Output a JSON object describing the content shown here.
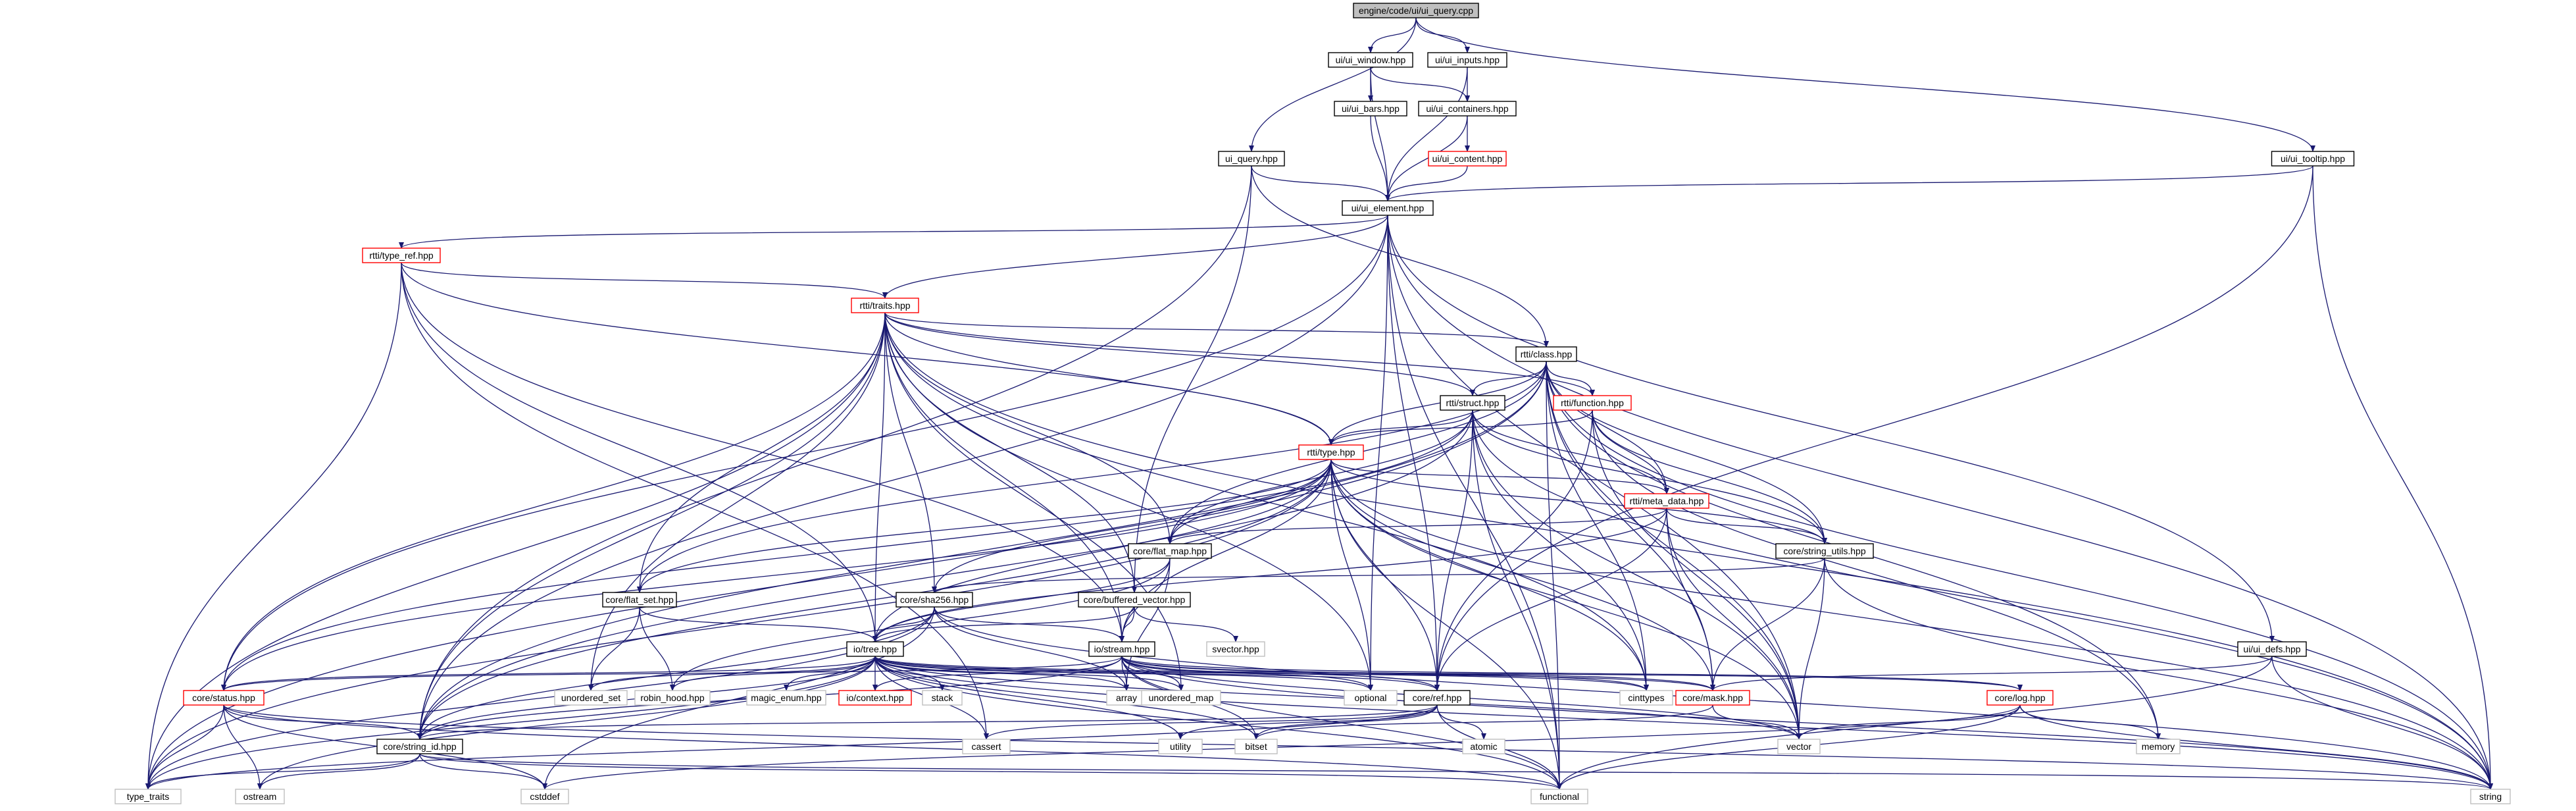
{
  "graph": {
    "root": "engine/code/ui/ui_query.cpp",
    "colors": {
      "edge": "#191970",
      "node_border": "#000000",
      "node_border_incomplete": "#ff0000",
      "node_border_system": "#bfbfbf",
      "root_fill": "#bfbfbf",
      "node_fill": "#ffffff",
      "text": "#000000"
    },
    "nodes": [
      {
        "id": "root",
        "label": "engine/code/ui/ui_query.cpp",
        "kind": "root"
      },
      {
        "id": "ui_window",
        "label": "ui/ui_window.hpp",
        "kind": "normal"
      },
      {
        "id": "ui_inputs",
        "label": "ui/ui_inputs.hpp",
        "kind": "normal"
      },
      {
        "id": "ui_bars",
        "label": "ui/ui_bars.hpp",
        "kind": "normal"
      },
      {
        "id": "ui_containers",
        "label": "ui/ui_containers.hpp",
        "kind": "normal"
      },
      {
        "id": "ui_content",
        "label": "ui/ui_content.hpp",
        "kind": "incomplete"
      },
      {
        "id": "ui_query_hpp",
        "label": "ui_query.hpp",
        "kind": "normal"
      },
      {
        "id": "ui_tooltip",
        "label": "ui/ui_tooltip.hpp",
        "kind": "normal"
      },
      {
        "id": "ui_element",
        "label": "ui/ui_element.hpp",
        "kind": "normal"
      },
      {
        "id": "type_ref",
        "label": "rtti/type_ref.hpp",
        "kind": "incomplete"
      },
      {
        "id": "traits",
        "label": "rtti/traits.hpp",
        "kind": "incomplete"
      },
      {
        "id": "class",
        "label": "rtti/class.hpp",
        "kind": "normal"
      },
      {
        "id": "struct",
        "label": "rtti/struct.hpp",
        "kind": "normal"
      },
      {
        "id": "function",
        "label": "rtti/function.hpp",
        "kind": "incomplete"
      },
      {
        "id": "type",
        "label": "rtti/type.hpp",
        "kind": "incomplete"
      },
      {
        "id": "meta_data",
        "label": "rtti/meta_data.hpp",
        "kind": "incomplete"
      },
      {
        "id": "flat_map",
        "label": "core/flat_map.hpp",
        "kind": "normal"
      },
      {
        "id": "string_utils",
        "label": "core/string_utils.hpp",
        "kind": "normal"
      },
      {
        "id": "sha256",
        "label": "core/sha256.hpp",
        "kind": "normal"
      },
      {
        "id": "flat_set",
        "label": "core/flat_set.hpp",
        "kind": "normal"
      },
      {
        "id": "buffered_vector",
        "label": "core/buffered_vector.hpp",
        "kind": "normal"
      },
      {
        "id": "svector",
        "label": "svector.hpp",
        "kind": "system"
      },
      {
        "id": "tree",
        "label": "io/tree.hpp",
        "kind": "normal"
      },
      {
        "id": "stream",
        "label": "io/stream.hpp",
        "kind": "normal"
      },
      {
        "id": "ui_defs",
        "label": "ui/ui_defs.hpp",
        "kind": "normal"
      },
      {
        "id": "status",
        "label": "core/status.hpp",
        "kind": "incomplete"
      },
      {
        "id": "unordered_set",
        "label": "unordered_set",
        "kind": "system"
      },
      {
        "id": "robin_hood",
        "label": "robin_hood.hpp",
        "kind": "system"
      },
      {
        "id": "magic_enum",
        "label": "magic_enum.hpp",
        "kind": "system"
      },
      {
        "id": "io_context",
        "label": "io/context.hpp",
        "kind": "incomplete"
      },
      {
        "id": "stack",
        "label": "stack",
        "kind": "system"
      },
      {
        "id": "array",
        "label": "array",
        "kind": "system"
      },
      {
        "id": "unordered_map",
        "label": "unordered_map",
        "kind": "system"
      },
      {
        "id": "optional",
        "label": "optional",
        "kind": "system"
      },
      {
        "id": "ref",
        "label": "core/ref.hpp",
        "kind": "normal"
      },
      {
        "id": "cinttypes",
        "label": "cinttypes",
        "kind": "system"
      },
      {
        "id": "mask",
        "label": "core/mask.hpp",
        "kind": "incomplete"
      },
      {
        "id": "log",
        "label": "core/log.hpp",
        "kind": "incomplete"
      },
      {
        "id": "string_id",
        "label": "core/string_id.hpp",
        "kind": "normal"
      },
      {
        "id": "cassert",
        "label": "cassert",
        "kind": "system"
      },
      {
        "id": "utility",
        "label": "utility",
        "kind": "system"
      },
      {
        "id": "bitset",
        "label": "bitset",
        "kind": "system"
      },
      {
        "id": "atomic",
        "label": "atomic",
        "kind": "system"
      },
      {
        "id": "vector",
        "label": "vector",
        "kind": "system"
      },
      {
        "id": "memory",
        "label": "memory",
        "kind": "system"
      },
      {
        "id": "type_traits",
        "label": "type_traits",
        "kind": "system"
      },
      {
        "id": "ostream",
        "label": "ostream",
        "kind": "system"
      },
      {
        "id": "cstddef",
        "label": "cstddef",
        "kind": "system"
      },
      {
        "id": "functional",
        "label": "functional",
        "kind": "system"
      },
      {
        "id": "string",
        "label": "string",
        "kind": "system"
      }
    ],
    "edges": [
      [
        "root",
        "ui_window"
      ],
      [
        "root",
        "ui_inputs"
      ],
      [
        "root",
        "ui_query_hpp"
      ],
      [
        "root",
        "ui_tooltip"
      ],
      [
        "ui_window",
        "ui_bars"
      ],
      [
        "ui_window",
        "ui_containers"
      ],
      [
        "ui_window",
        "ui_element"
      ],
      [
        "ui_inputs",
        "ui_containers"
      ],
      [
        "ui_inputs",
        "ui_element"
      ],
      [
        "ui_bars",
        "ui_element"
      ],
      [
        "ui_containers",
        "ui_content"
      ],
      [
        "ui_containers",
        "ui_element"
      ],
      [
        "ui_content",
        "ui_element"
      ],
      [
        "ui_query_hpp",
        "ui_element"
      ],
      [
        "ui_query_hpp",
        "class"
      ],
      [
        "ui_query_hpp",
        "buffered_vector"
      ],
      [
        "ui_query_hpp",
        "string_id"
      ],
      [
        "ui_tooltip",
        "ui_element"
      ],
      [
        "ui_tooltip",
        "ref"
      ],
      [
        "ui_tooltip",
        "string"
      ],
      [
        "ui_element",
        "type_ref"
      ],
      [
        "ui_element",
        "traits"
      ],
      [
        "ui_element",
        "status"
      ],
      [
        "ui_element",
        "string_id"
      ],
      [
        "ui_element",
        "optional"
      ],
      [
        "ui_element",
        "ref"
      ],
      [
        "ui_element",
        "ui_defs"
      ],
      [
        "ui_element",
        "vector"
      ],
      [
        "ui_element",
        "functional"
      ],
      [
        "ui_element",
        "string"
      ],
      [
        "type_ref",
        "traits"
      ],
      [
        "type_ref",
        "type"
      ],
      [
        "type_ref",
        "tree"
      ],
      [
        "type_ref",
        "stream"
      ],
      [
        "type_ref",
        "type_traits"
      ],
      [
        "type_ref",
        "cassert"
      ],
      [
        "traits",
        "class"
      ],
      [
        "traits",
        "struct"
      ],
      [
        "traits",
        "function"
      ],
      [
        "traits",
        "type"
      ],
      [
        "traits",
        "flat_map"
      ],
      [
        "traits",
        "sha256"
      ],
      [
        "traits",
        "flat_set"
      ],
      [
        "traits",
        "buffered_vector"
      ],
      [
        "traits",
        "tree"
      ],
      [
        "traits",
        "stream"
      ],
      [
        "traits",
        "status"
      ],
      [
        "traits",
        "unordered_set"
      ],
      [
        "traits",
        "unordered_map"
      ],
      [
        "traits",
        "optional"
      ],
      [
        "traits",
        "cinttypes"
      ],
      [
        "traits",
        "string_id"
      ],
      [
        "traits",
        "type_traits"
      ],
      [
        "traits",
        "string"
      ],
      [
        "class",
        "struct"
      ],
      [
        "class",
        "function"
      ],
      [
        "class",
        "type"
      ],
      [
        "class",
        "meta_data"
      ],
      [
        "class",
        "flat_map"
      ],
      [
        "class",
        "string_utils"
      ],
      [
        "class",
        "flat_set"
      ],
      [
        "class",
        "mask"
      ],
      [
        "class",
        "vector"
      ],
      [
        "class",
        "memory"
      ],
      [
        "class",
        "functional"
      ],
      [
        "class",
        "string"
      ],
      [
        "class",
        "cinttypes"
      ],
      [
        "class",
        "string_id"
      ],
      [
        "class",
        "type_traits"
      ],
      [
        "struct",
        "type"
      ],
      [
        "struct",
        "meta_data"
      ],
      [
        "struct",
        "flat_map"
      ],
      [
        "struct",
        "string_utils"
      ],
      [
        "struct",
        "ref"
      ],
      [
        "struct",
        "cinttypes"
      ],
      [
        "struct",
        "vector"
      ],
      [
        "struct",
        "functional"
      ],
      [
        "struct",
        "string"
      ],
      [
        "struct",
        "string_id"
      ],
      [
        "struct",
        "status"
      ],
      [
        "function",
        "type"
      ],
      [
        "function",
        "meta_data"
      ],
      [
        "function",
        "string_utils"
      ],
      [
        "function",
        "ref"
      ],
      [
        "function",
        "vector"
      ],
      [
        "function",
        "memory"
      ],
      [
        "type",
        "meta_data"
      ],
      [
        "type",
        "flat_map"
      ],
      [
        "type",
        "string_utils"
      ],
      [
        "type",
        "sha256"
      ],
      [
        "type",
        "flat_set"
      ],
      [
        "type",
        "tree"
      ],
      [
        "type",
        "stream"
      ],
      [
        "type",
        "optional"
      ],
      [
        "type",
        "ref"
      ],
      [
        "type",
        "cinttypes"
      ],
      [
        "type",
        "mask"
      ],
      [
        "type",
        "string_id"
      ],
      [
        "type",
        "status"
      ],
      [
        "type",
        "type_traits"
      ],
      [
        "type",
        "vector"
      ],
      [
        "type",
        "functional"
      ],
      [
        "type",
        "string"
      ],
      [
        "meta_data",
        "flat_map"
      ],
      [
        "meta_data",
        "string_utils"
      ],
      [
        "meta_data",
        "ref"
      ],
      [
        "meta_data",
        "mask"
      ],
      [
        "meta_data",
        "vector"
      ],
      [
        "meta_data",
        "tree"
      ],
      [
        "flat_map",
        "tree"
      ],
      [
        "flat_map",
        "stream"
      ],
      [
        "flat_map",
        "robin_hood"
      ],
      [
        "flat_map",
        "array"
      ],
      [
        "string_utils",
        "sha256"
      ],
      [
        "string_utils",
        "vector"
      ],
      [
        "string_utils",
        "string"
      ],
      [
        "string_utils",
        "mask"
      ],
      [
        "sha256",
        "tree"
      ],
      [
        "sha256",
        "stream"
      ],
      [
        "sha256",
        "string_id"
      ],
      [
        "sha256",
        "type_traits"
      ],
      [
        "sha256",
        "cstddef"
      ],
      [
        "sha256",
        "array"
      ],
      [
        "sha256",
        "string"
      ],
      [
        "flat_set",
        "tree"
      ],
      [
        "flat_set",
        "robin_hood"
      ],
      [
        "flat_set",
        "unordered_set"
      ],
      [
        "buffered_vector",
        "tree"
      ],
      [
        "buffered_vector",
        "stream"
      ],
      [
        "buffered_vector",
        "svector"
      ],
      [
        "tree",
        "status"
      ],
      [
        "tree",
        "unordered_set"
      ],
      [
        "tree",
        "robin_hood"
      ],
      [
        "tree",
        "magic_enum"
      ],
      [
        "tree",
        "io_context"
      ],
      [
        "tree",
        "stack"
      ],
      [
        "tree",
        "array"
      ],
      [
        "tree",
        "unordered_map"
      ],
      [
        "tree",
        "optional"
      ],
      [
        "tree",
        "ref"
      ],
      [
        "tree",
        "cinttypes"
      ],
      [
        "tree",
        "mask"
      ],
      [
        "tree",
        "log"
      ],
      [
        "tree",
        "string_id"
      ],
      [
        "tree",
        "cassert"
      ],
      [
        "tree",
        "utility"
      ],
      [
        "tree",
        "bitset"
      ],
      [
        "tree",
        "vector"
      ],
      [
        "tree",
        "functional"
      ],
      [
        "tree",
        "string"
      ],
      [
        "tree",
        "type_traits"
      ],
      [
        "tree",
        "ostream"
      ],
      [
        "stream",
        "io_context"
      ],
      [
        "stream",
        "array"
      ],
      [
        "stream",
        "unordered_map"
      ],
      [
        "stream",
        "optional"
      ],
      [
        "stream",
        "ref"
      ],
      [
        "stream",
        "cinttypes"
      ],
      [
        "stream",
        "mask"
      ],
      [
        "stream",
        "log"
      ],
      [
        "stream",
        "string_id"
      ],
      [
        "stream",
        "bitset"
      ],
      [
        "stream",
        "vector"
      ],
      [
        "stream",
        "functional"
      ],
      [
        "stream",
        "string"
      ],
      [
        "stream",
        "status"
      ],
      [
        "ui_defs",
        "mask"
      ],
      [
        "ui_defs",
        "string"
      ],
      [
        "ui_defs",
        "functional"
      ],
      [
        "status",
        "string_id"
      ],
      [
        "status",
        "type_traits"
      ],
      [
        "status",
        "ostream"
      ],
      [
        "status",
        "cstddef"
      ],
      [
        "status",
        "functional"
      ],
      [
        "status",
        "string"
      ],
      [
        "ref",
        "string_id"
      ],
      [
        "ref",
        "cassert"
      ],
      [
        "ref",
        "utility"
      ],
      [
        "ref",
        "atomic"
      ],
      [
        "ref",
        "functional"
      ],
      [
        "ref",
        "type_traits"
      ],
      [
        "ref",
        "bitset"
      ],
      [
        "mask",
        "bitset"
      ],
      [
        "mask",
        "vector"
      ],
      [
        "log",
        "vector"
      ],
      [
        "log",
        "memory"
      ],
      [
        "log",
        "string"
      ],
      [
        "log",
        "functional"
      ],
      [
        "log",
        "cstddef"
      ],
      [
        "string_id",
        "type_traits"
      ],
      [
        "string_id",
        "ostream"
      ],
      [
        "string_id",
        "cstddef"
      ],
      [
        "string_id",
        "functional"
      ],
      [
        "string_id",
        "string"
      ]
    ]
  }
}
